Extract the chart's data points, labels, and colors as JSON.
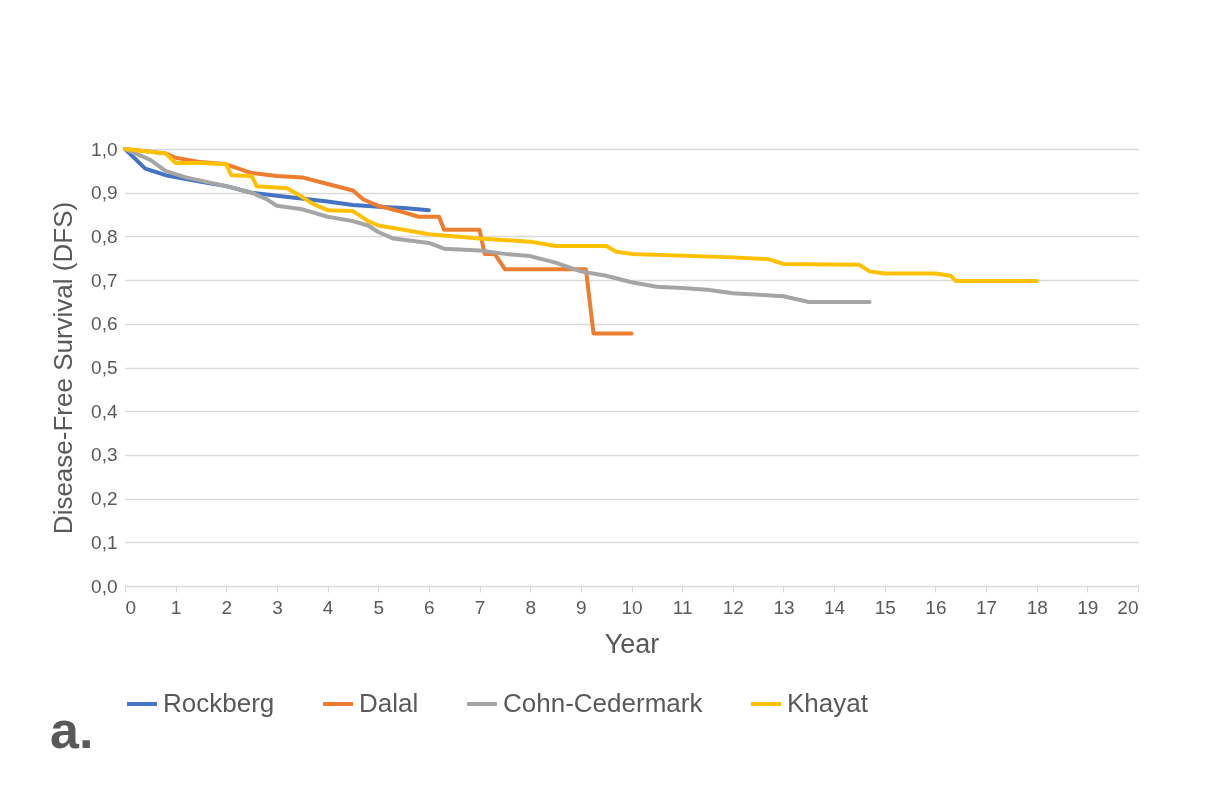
{
  "chart_data": {
    "type": "line",
    "xlabel": "Year",
    "ylabel": "Disease-Free Survival (DFS)",
    "annotations": [
      "a."
    ],
    "xlim": [
      0,
      20
    ],
    "xticks": [
      0,
      1,
      2,
      3,
      4,
      5,
      6,
      7,
      8,
      9,
      10,
      11,
      12,
      13,
      14,
      15,
      16,
      17,
      18,
      19,
      20
    ],
    "ylim": [
      0,
      1
    ],
    "yticks": [
      {
        "value": 0,
        "label": "0,0"
      },
      {
        "value": 0.1,
        "label": "0,1"
      },
      {
        "value": 0.2,
        "label": "0,2"
      },
      {
        "value": 0.3,
        "label": "0,3"
      },
      {
        "value": 0.4,
        "label": "0,4"
      },
      {
        "value": 0.5,
        "label": "0,5"
      },
      {
        "value": 0.6,
        "label": "0,6"
      },
      {
        "value": 0.7,
        "label": "0,7"
      },
      {
        "value": 0.8,
        "label": "0,8"
      },
      {
        "value": 0.9,
        "label": "0,9"
      },
      {
        "value": 1,
        "label": "1,0"
      }
    ],
    "grid": "y",
    "legend": "bottom",
    "marker": "none",
    "line_style": "solid",
    "series": [
      {
        "name": "Rockberg",
        "color": "#4472c4",
        "x": [
          0,
          0.4,
          0.8,
          1.5,
          2,
          2.5,
          3,
          4,
          4.5,
          5,
          5.5,
          6
        ],
        "values": [
          1.0,
          0.955,
          0.94,
          0.925,
          0.915,
          0.9,
          0.893,
          0.88,
          0.872,
          0.868,
          0.865,
          0.86
        ]
      },
      {
        "name": "Dalal",
        "color": "#ed7d31",
        "x": [
          0,
          0.8,
          1,
          1.5,
          2,
          2.5,
          3,
          3.5,
          4,
          4.5,
          4.7,
          5,
          5.5,
          5.8,
          6.2,
          6.3,
          7.0,
          7.1,
          7.3,
          7.5,
          9.1,
          9.25,
          10
        ],
        "values": [
          1.0,
          0.99,
          0.98,
          0.97,
          0.965,
          0.945,
          0.938,
          0.935,
          0.92,
          0.905,
          0.885,
          0.87,
          0.855,
          0.845,
          0.845,
          0.815,
          0.815,
          0.76,
          0.76,
          0.725,
          0.725,
          0.578,
          0.578
        ]
      },
      {
        "name": "Cohn-Cedermark",
        "color": "#a5a5a5",
        "x": [
          0,
          0.5,
          0.8,
          1.2,
          2,
          2.5,
          2.8,
          3,
          3.5,
          4,
          4.5,
          4.8,
          5,
          5.3,
          6,
          6.3,
          7,
          7.5,
          8,
          8.5,
          9,
          9.5,
          10,
          10.5,
          11,
          11.5,
          12,
          13,
          13.5,
          14.7
        ],
        "values": [
          1.0,
          0.975,
          0.95,
          0.935,
          0.915,
          0.9,
          0.885,
          0.87,
          0.862,
          0.845,
          0.835,
          0.825,
          0.81,
          0.795,
          0.785,
          0.772,
          0.768,
          0.76,
          0.755,
          0.74,
          0.72,
          0.71,
          0.695,
          0.685,
          0.682,
          0.678,
          0.67,
          0.663,
          0.65,
          0.65
        ]
      },
      {
        "name": "Khayat",
        "color": "#ffc000",
        "x": [
          0,
          0.8,
          1,
          1.5,
          2,
          2.1,
          2.5,
          2.6,
          3.2,
          3.5,
          3.7,
          4,
          4.5,
          4.8,
          5,
          5.5,
          6,
          7,
          8,
          8.5,
          9.5,
          9.7,
          10,
          12,
          12.7,
          13,
          14.5,
          14.7,
          15,
          16,
          16.3,
          16.4,
          18
        ],
        "values": [
          1.0,
          0.99,
          0.968,
          0.968,
          0.965,
          0.94,
          0.938,
          0.915,
          0.91,
          0.89,
          0.875,
          0.86,
          0.858,
          0.835,
          0.825,
          0.815,
          0.805,
          0.795,
          0.788,
          0.778,
          0.778,
          0.765,
          0.76,
          0.752,
          0.748,
          0.737,
          0.735,
          0.72,
          0.715,
          0.715,
          0.71,
          0.698,
          0.698
        ]
      }
    ]
  }
}
